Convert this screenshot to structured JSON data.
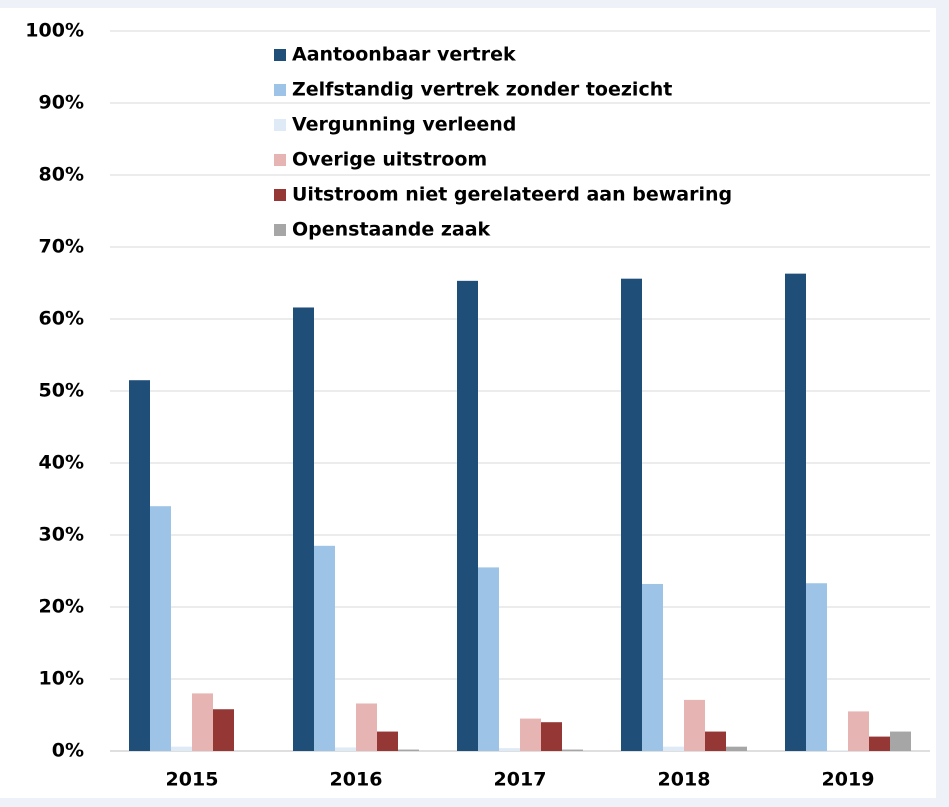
{
  "chart_data": {
    "type": "bar",
    "categories": [
      "2015",
      "2016",
      "2017",
      "2018",
      "2019"
    ],
    "series": [
      {
        "name": "Aantoonbaar vertrek",
        "color": "#1f4e79",
        "values": [
          51.5,
          61.6,
          65.3,
          65.6,
          66.3
        ]
      },
      {
        "name": "Zelfstandig vertrek zonder toezicht",
        "color": "#9dc3e6",
        "values": [
          34,
          28.5,
          25.5,
          23.2,
          23.3
        ]
      },
      {
        "name": "Vergunning verleend",
        "color": "#deebf7",
        "values": [
          0.6,
          0.5,
          0.4,
          0.6,
          0.1
        ]
      },
      {
        "name": "Overige uitstroom",
        "color": "#e6b4b2",
        "values": [
          8,
          6.6,
          4.5,
          7.1,
          5.5
        ]
      },
      {
        "name": "Uitstroom niet gerelateerd aan bewaring",
        "color": "#953735",
        "values": [
          5.8,
          2.7,
          4,
          2.7,
          2
        ]
      },
      {
        "name": "Openstaande zaak",
        "color": "#a6a6a6",
        "values": [
          0,
          0.2,
          0.2,
          0.6,
          2.7
        ]
      }
    ],
    "ylim": [
      0,
      100
    ],
    "yticks": [
      {
        "value": 0,
        "label": "0%"
      },
      {
        "value": 10,
        "label": "10%"
      },
      {
        "value": 20,
        "label": "20%"
      },
      {
        "value": 30,
        "label": "30%"
      },
      {
        "value": 40,
        "label": "40%"
      },
      {
        "value": 50,
        "label": "50%"
      },
      {
        "value": 60,
        "label": "60%"
      },
      {
        "value": 70,
        "label": "70%"
      },
      {
        "value": 80,
        "label": "80%"
      },
      {
        "value": 90,
        "label": "90%"
      },
      {
        "value": 100,
        "label": "100%"
      }
    ],
    "grid": true
  }
}
